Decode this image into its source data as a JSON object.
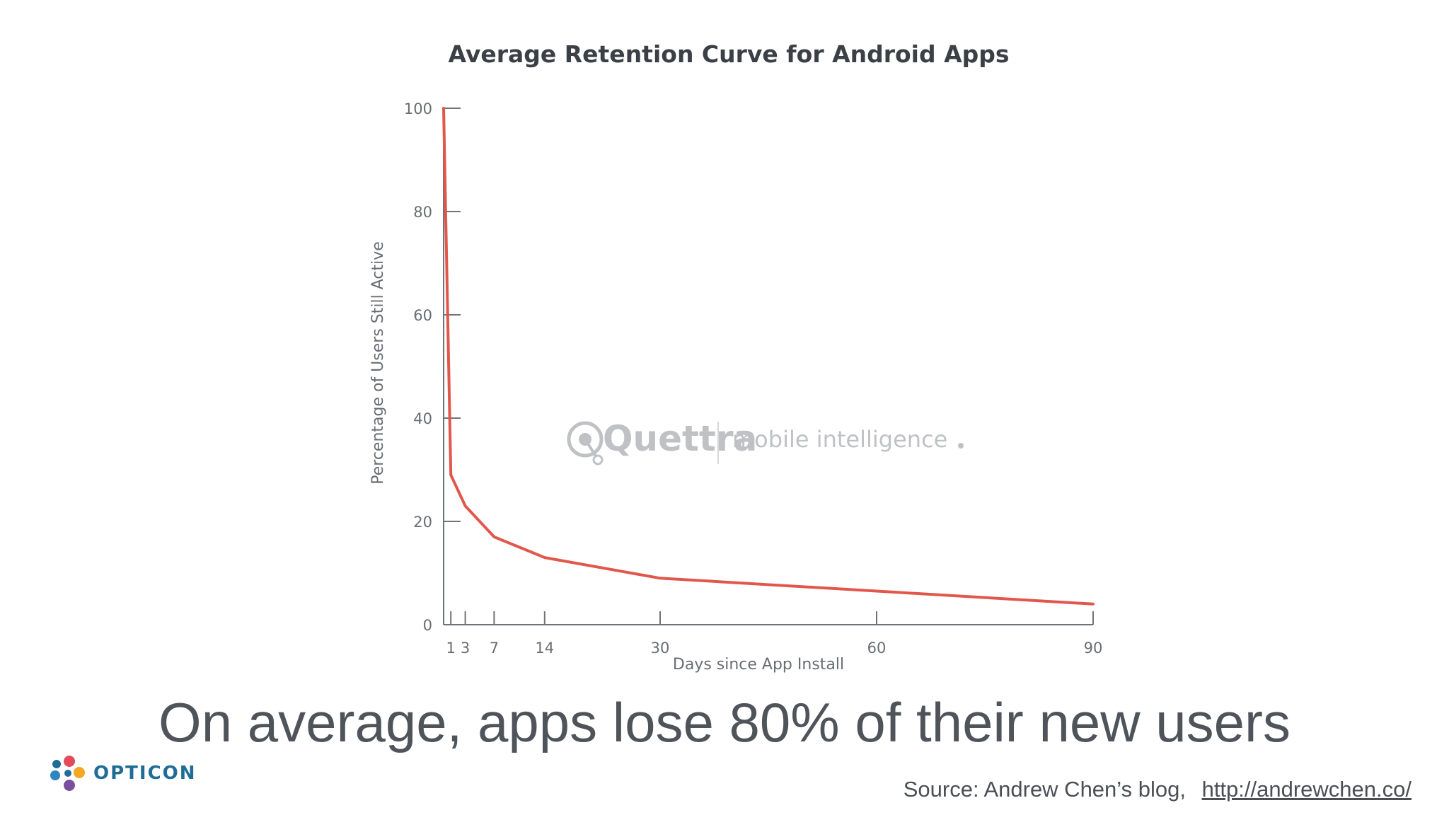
{
  "chart_data": {
    "type": "line",
    "title": "Average Retention Curve for Android Apps",
    "xlabel": "Days since App Install",
    "ylabel": "Percentage of Users Still Active",
    "x_ticks": [
      1,
      3,
      7,
      14,
      30,
      60,
      90
    ],
    "y_ticks": [
      0,
      20,
      40,
      60,
      80,
      100
    ],
    "xlim": [
      0,
      90
    ],
    "ylim": [
      0,
      100
    ],
    "grid": false,
    "series": [
      {
        "color": "#e2574c",
        "x": [
          0,
          1,
          3,
          7,
          14,
          30,
          60,
          90
        ],
        "y": [
          100,
          29,
          23,
          17,
          13,
          9,
          6.5,
          4
        ]
      }
    ]
  },
  "watermark": {
    "brand": "Quettra",
    "tagline": "mobile intelligence"
  },
  "headline": "On average, apps lose 80% of their new users",
  "source": {
    "text": "Source: Andrew Chen’s blog,",
    "link": "http://andrewchen.co/"
  },
  "logo": {
    "text": "OPTICON",
    "colors": [
      "#e24b5b",
      "#f5a623",
      "#2e86c1",
      "#7b4fa0",
      "#1f6d96"
    ]
  }
}
